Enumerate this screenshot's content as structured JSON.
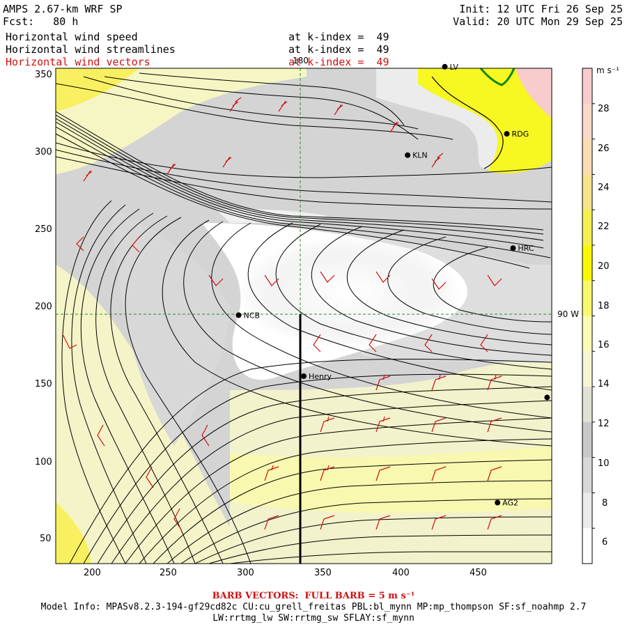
{
  "header": {
    "model": "AMPS 2.67-km WRF SP",
    "forecast": "Fcst:   80 h",
    "init": "Init: 12 UTC Fri 26 Sep 25",
    "valid": "Valid: 20 UTC Mon 29 Sep 25",
    "fields": [
      {
        "name": "Horizontal wind speed",
        "level": "at k-index =  49"
      },
      {
        "name": "Horizontal wind streamlines",
        "level": "at k-index =  49"
      },
      {
        "name": "Horizontal wind vectors",
        "level": "at k-index =  49"
      }
    ]
  },
  "map": {
    "x_ticks": [
      "200",
      "250",
      "300",
      "350",
      "400",
      "450"
    ],
    "y_ticks": [
      "350",
      "300",
      "250",
      "200",
      "150",
      "100",
      "50"
    ],
    "meridian_label": "180",
    "parallel_label": "90 W",
    "stations": [
      {
        "name": "LV",
        "x": 426,
        "y": 358
      },
      {
        "name": "RDG",
        "x": 466,
        "y": 314
      },
      {
        "name": "KLN",
        "x": 402,
        "y": 300
      },
      {
        "name": "HRC",
        "x": 470,
        "y": 239
      },
      {
        "name": "NCB",
        "x": 293,
        "y": 195
      },
      {
        "name": "Henry",
        "x": 335,
        "y": 155
      },
      {
        "name": "AG2",
        "x": 460,
        "y": 72
      },
      {
        "name": "",
        "x": 492,
        "y": 141
      }
    ]
  },
  "colorbar": {
    "unit": "m s⁻¹",
    "labels": [
      "28",
      "26",
      "24",
      "22",
      "20",
      "18",
      "16",
      "14",
      "12",
      "10",
      "8",
      "6"
    ],
    "colors": [
      "#f8cccc",
      "#fbd9c9",
      "#fcdcb2",
      "#f8e48c",
      "#f5f050",
      "#f8f800",
      "#f8f86c",
      "#fbfbb4",
      "#f5f5d2",
      "#e2e2d4",
      "#c8c8c8",
      "#d8d8d8",
      "#ebebeb",
      "#ffffff"
    ]
  },
  "footer": {
    "barb_note": "BARB VECTORS:  FULL BARB = 5 m s⁻¹",
    "model_info": "Model Info: MPASv8.2.3-194-gf29cd82c CU:cu_grell_freitas PBL:bl_mynn MP:mp_thompson SF:sf_noahmp 2.7",
    "model_info2": "LW:rrtmg_lw SW:rrtmg_sw SFLAY:sf_mynn"
  }
}
